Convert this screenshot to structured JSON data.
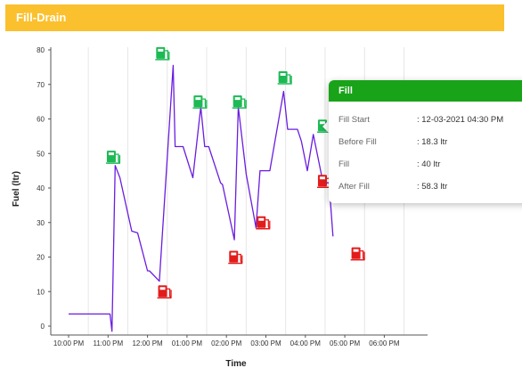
{
  "panel": {
    "title": "Fill-Drain"
  },
  "chart_data": {
    "type": "line",
    "ylabel": "Fuel (ltr)",
    "xlabel": "Time",
    "ylim": [
      0,
      80
    ],
    "yticks": [
      0,
      10,
      20,
      30,
      40,
      50,
      60,
      70,
      80
    ],
    "xticks": [
      "10:00 PM",
      "11:00 PM",
      "12:00 PM",
      "01:00 PM",
      "02:00 PM",
      "03:00 PM",
      "04:00 PM",
      "05:00 PM",
      "06:00 PM"
    ],
    "series": [
      {
        "values_hours": [
          0,
          1.05,
          1.1,
          1.18,
          1.3,
          1.6,
          1.75,
          2.0,
          2.05,
          2.3,
          2.65,
          2.7,
          2.9,
          3.15,
          3.35,
          3.45,
          3.55,
          3.85,
          3.9,
          4.2,
          4.3,
          4.5,
          4.75,
          4.85,
          5.1,
          5.45,
          5.55,
          5.8,
          5.9,
          6.05,
          6.2,
          6.45,
          6.6,
          6.7
        ],
        "values": [
          3.5,
          3.5,
          -1.5,
          46.5,
          43,
          27.5,
          27,
          16,
          16,
          13,
          75.5,
          52,
          52,
          43,
          63.5,
          52,
          52,
          41.5,
          41,
          25,
          63.5,
          44,
          28.5,
          45,
          45,
          68,
          57,
          57,
          53.5,
          45,
          55.5,
          41.5,
          41.5,
          26
        ]
      }
    ],
    "fill_markers": [
      {
        "hour": 1.15,
        "value": 49
      },
      {
        "hour": 2.4,
        "value": 79
      },
      {
        "hour": 3.35,
        "value": 65
      },
      {
        "hour": 4.35,
        "value": 65
      },
      {
        "hour": 5.5,
        "value": 72
      },
      {
        "hour": 6.5,
        "value": 58
      }
    ],
    "drain_markers": [
      {
        "hour": 2.45,
        "value": 10
      },
      {
        "hour": 4.25,
        "value": 20
      },
      {
        "hour": 4.95,
        "value": 30
      },
      {
        "hour": 6.5,
        "value": 42
      },
      {
        "hour": 7.35,
        "value": 21
      }
    ]
  },
  "tooltip": {
    "title": "Fill",
    "rows": [
      {
        "label": "Fill Start",
        "value": ": 12-03-2021 04:30 PM"
      },
      {
        "label": "Before Fill",
        "value": ": 18.3 ltr"
      },
      {
        "label": "Fill",
        "value": ": 40 ltr"
      },
      {
        "label": "After Fill",
        "value": ": 58.3 ltr"
      }
    ]
  },
  "colors": {
    "header": "#fbc02d",
    "line": "#6a1de0",
    "fill_marker": "#1db954",
    "drain_marker": "#e31b1b",
    "tooltip_header": "#19a319"
  },
  "icons": {
    "fill": "fuel-pump-icon",
    "drain": "fuel-pump-icon"
  }
}
